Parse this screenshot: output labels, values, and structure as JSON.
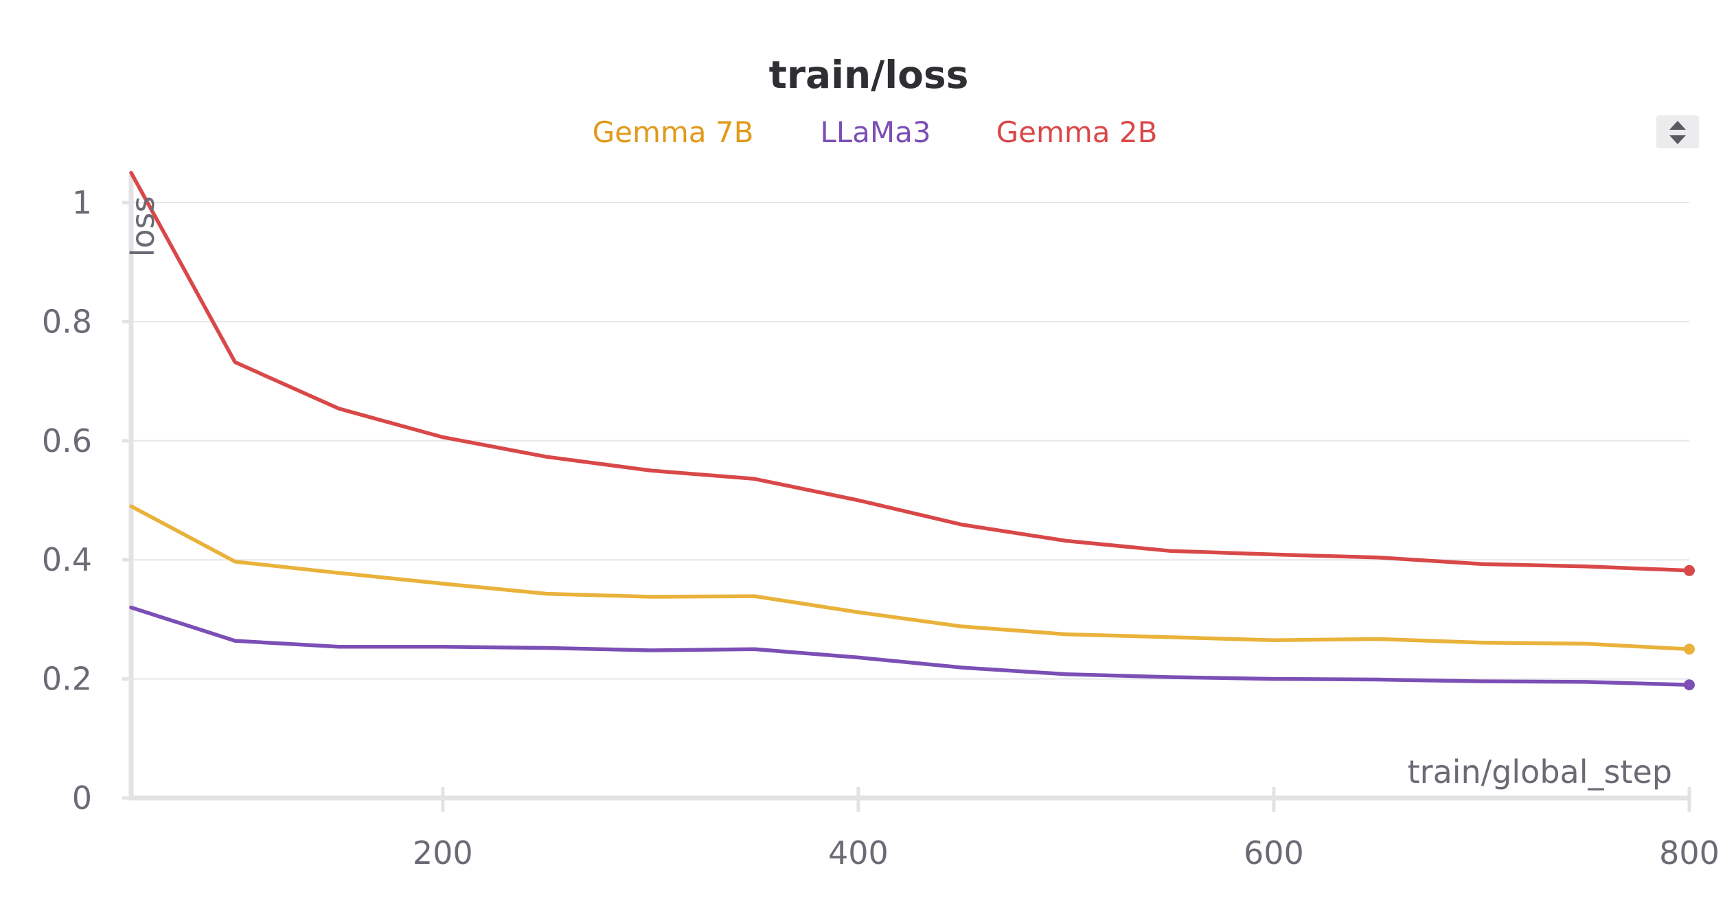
{
  "chart_data": {
    "type": "line",
    "title": "train/loss",
    "xlabel": "train/global_step",
    "ylabel": "loss",
    "xlim": [
      50,
      800
    ],
    "ylim": [
      0,
      1.05
    ],
    "x_ticks": [
      200,
      400,
      600,
      800
    ],
    "x_tick_labels": [
      "200",
      "400",
      "600",
      "800"
    ],
    "y_ticks": [
      0,
      0.2,
      0.4,
      0.6,
      0.8,
      1
    ],
    "y_tick_labels": [
      "0",
      "0.2",
      "0.4",
      "0.6",
      "0.8",
      "1"
    ],
    "grid": true,
    "legend_position": "top",
    "x": [
      50,
      100,
      150,
      200,
      250,
      300,
      350,
      400,
      450,
      500,
      550,
      600,
      650,
      700,
      750,
      800
    ],
    "series": [
      {
        "name": "Gemma 7B",
        "color": "#e9b23a",
        "values": [
          0.49,
          0.397,
          0.378,
          0.36,
          0.343,
          0.338,
          0.339,
          0.312,
          0.288,
          0.275,
          0.27,
          0.265,
          0.267,
          0.261,
          0.259,
          0.25
        ]
      },
      {
        "name": "LLaMa3",
        "color": "#7b4fb5",
        "values": [
          0.32,
          0.264,
          0.254,
          0.254,
          0.252,
          0.248,
          0.25,
          0.236,
          0.219,
          0.208,
          0.203,
          0.2,
          0.199,
          0.196,
          0.195,
          0.19
        ]
      },
      {
        "name": "Gemma 2B",
        "color": "#d94848",
        "values": [
          1.05,
          0.732,
          0.654,
          0.606,
          0.573,
          0.55,
          0.536,
          0.5,
          0.459,
          0.432,
          0.415,
          0.409,
          0.404,
          0.393,
          0.389,
          0.382
        ]
      }
    ],
    "legend_text_colors": {
      "Gemma 7B": "#e09a1b",
      "LLaMa3": "#7b4fb5",
      "Gemma 2B": "#d94848"
    }
  },
  "controls": {
    "legend_scroll_icon": "up-down-arrows-icon"
  }
}
